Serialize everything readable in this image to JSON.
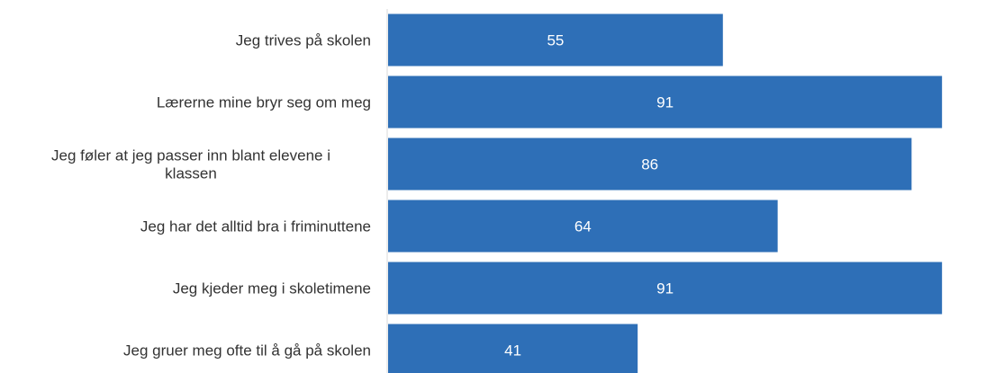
{
  "chart_data": {
    "type": "bar",
    "orientation": "horizontal",
    "categories": [
      [
        "Jeg trives på skolen"
      ],
      [
        "Lærerne mine bryr seg om meg"
      ],
      [
        "Jeg føler at jeg passer inn blant elevene i",
        "klassen"
      ],
      [
        "Jeg har det alltid bra i friminuttene"
      ],
      [
        "Jeg kjeder meg i skoletimene"
      ],
      [
        "Jeg gruer meg ofte til å gå på skolen"
      ]
    ],
    "values": [
      55,
      91,
      86,
      64,
      91,
      41
    ],
    "xlim": [
      0,
      100
    ],
    "grid": false,
    "bar_color": "#2e6fb7",
    "axis_color": "#d9d9d9",
    "label_color": "#333333",
    "value_label_color": "#ffffff"
  }
}
